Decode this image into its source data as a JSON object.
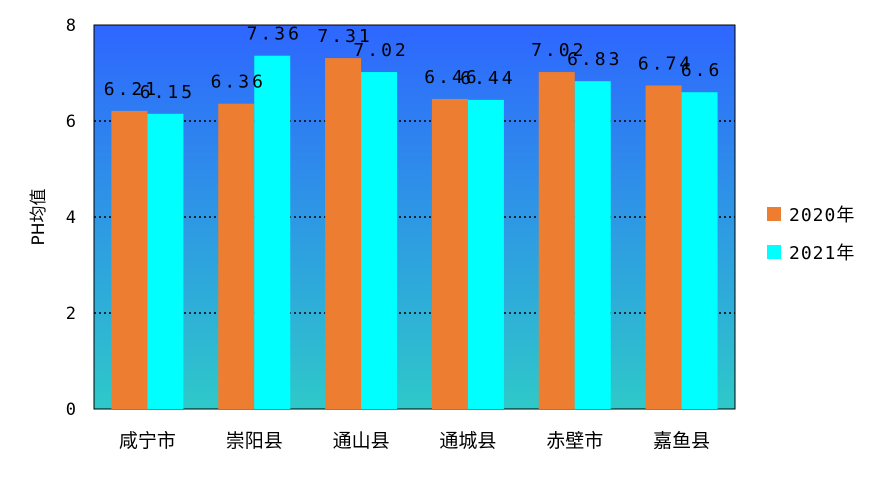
{
  "chart_data": {
    "type": "bar",
    "title": "",
    "xlabel": "",
    "ylabel": "PH均值",
    "ylim": [
      0,
      8
    ],
    "yticks": [
      0,
      2,
      4,
      6,
      8
    ],
    "grid": "horizontal dotted",
    "legend_position": "right",
    "categories": [
      "咸宁市",
      "崇阳县",
      "通山县",
      "通城县",
      "赤壁市",
      "嘉鱼县"
    ],
    "series": [
      {
        "name": "2020年",
        "color": "#ED7D31",
        "values": [
          6.21,
          6.36,
          7.31,
          6.46,
          7.02,
          6.74
        ],
        "labels": [
          "6.21",
          "6.36",
          "7.31",
          "6.46",
          "7.02",
          "6.74"
        ]
      },
      {
        "name": "2021年",
        "color": "#00FFFF",
        "values": [
          6.15,
          7.36,
          7.02,
          6.44,
          6.83,
          6.6
        ],
        "labels": [
          "6.15",
          "7.36",
          "7.02",
          "6.44",
          "6.83",
          "6.6"
        ]
      }
    ],
    "plot_background": {
      "top_color": "#2E66FF",
      "bottom_color": "#2EC9C9"
    }
  }
}
